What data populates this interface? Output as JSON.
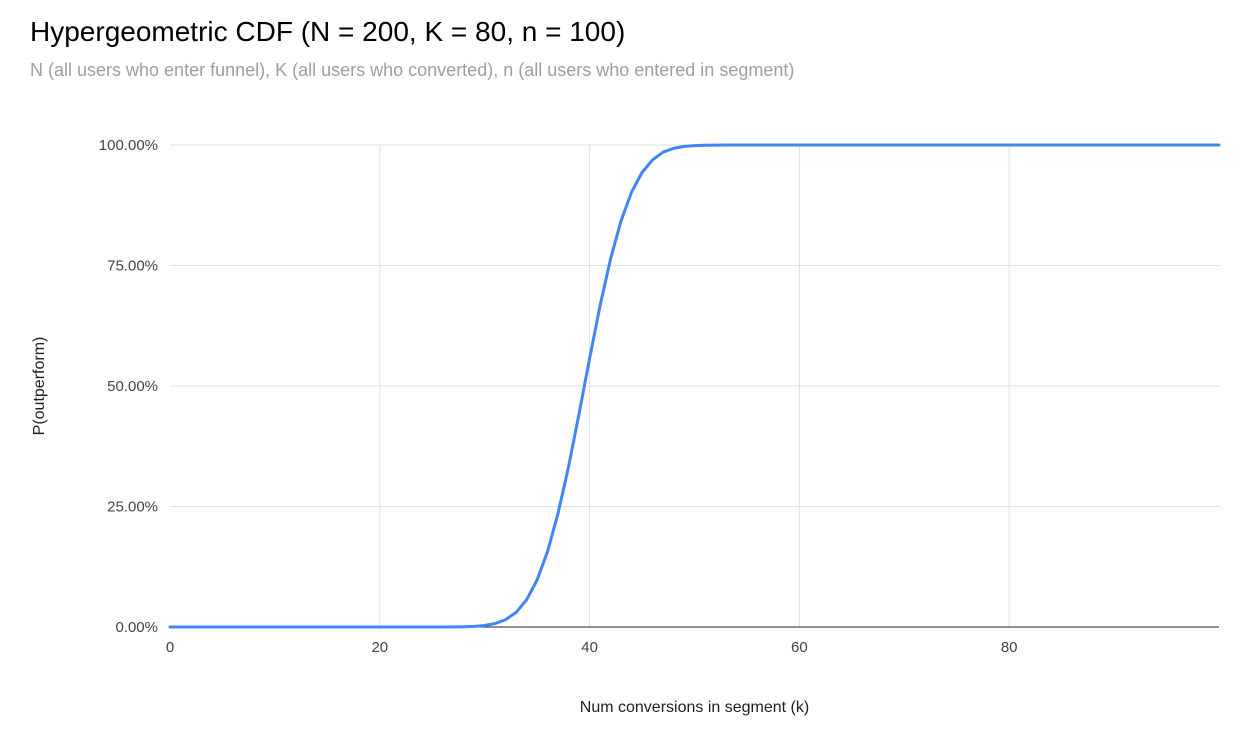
{
  "header": {
    "title": "Hypergeometric CDF (N = 200, K = 80, n = 100)",
    "subtitle": "N (all users who enter funnel), K (all users who converted), n (all users who entered in segment)"
  },
  "colors": {
    "background": "#ffffff",
    "title": "#000000",
    "subtitle": "#9e9e9e",
    "gridline": "#e0e0e0",
    "axis_line": "#212121",
    "tick_label": "#444444",
    "axis_title": "#202124",
    "series_line": "#4285f4"
  },
  "chart_data": {
    "type": "line",
    "title": "Hypergeometric CDF (N = 200, K = 80, n = 100)",
    "subtitle": "N (all users who enter funnel), K (all users who converted), n (all users who entered in segment)",
    "xlabel": "Num conversions in segment (k)",
    "ylabel": "P(outperform)",
    "xlim": [
      0,
      100
    ],
    "ylim": [
      0,
      1
    ],
    "grid": true,
    "legend_position": "none",
    "parameters": {
      "N": 200,
      "K": 80,
      "n": 100
    },
    "x_ticks": [
      0,
      20,
      40,
      60,
      80
    ],
    "y_ticks": [
      {
        "value": 0.0,
        "label": "0.00%"
      },
      {
        "value": 0.25,
        "label": "25.00%"
      },
      {
        "value": 0.5,
        "label": "50.00%"
      },
      {
        "value": 0.75,
        "label": "75.00%"
      },
      {
        "value": 1.0,
        "label": "100.00%"
      }
    ],
    "series": [
      {
        "name": "P(outperform)",
        "points": [
          [
            0,
            0
          ],
          [
            5,
            0
          ],
          [
            10,
            0
          ],
          [
            15,
            0
          ],
          [
            20,
            0
          ],
          [
            22,
            0
          ],
          [
            24,
            1e-05
          ],
          [
            25,
            1e-05
          ],
          [
            26,
            5e-05
          ],
          [
            27,
            0.00016
          ],
          [
            28,
            0.00047
          ],
          [
            29,
            0.0013
          ],
          [
            30,
            0.0031
          ],
          [
            31,
            0.0072
          ],
          [
            32,
            0.0154
          ],
          [
            33,
            0.0306
          ],
          [
            34,
            0.0566
          ],
          [
            35,
            0.0975
          ],
          [
            36,
            0.157
          ],
          [
            37,
            0.236
          ],
          [
            38,
            0.333
          ],
          [
            39,
            0.443
          ],
          [
            40,
            0.557
          ],
          [
            41,
            0.667
          ],
          [
            42,
            0.764
          ],
          [
            43,
            0.843
          ],
          [
            44,
            0.9025
          ],
          [
            45,
            0.943
          ],
          [
            46,
            0.969
          ],
          [
            47,
            0.985
          ],
          [
            48,
            0.993
          ],
          [
            49,
            0.997
          ],
          [
            50,
            0.9987
          ],
          [
            51,
            0.9995
          ],
          [
            52,
            0.9998
          ],
          [
            53,
            0.99995
          ],
          [
            54,
            1
          ],
          [
            55,
            1
          ],
          [
            60,
            1
          ],
          [
            65,
            1
          ],
          [
            70,
            1
          ],
          [
            75,
            1
          ],
          [
            80,
            1
          ],
          [
            85,
            1
          ],
          [
            90,
            1
          ],
          [
            95,
            1
          ],
          [
            100,
            1
          ]
        ]
      }
    ]
  }
}
